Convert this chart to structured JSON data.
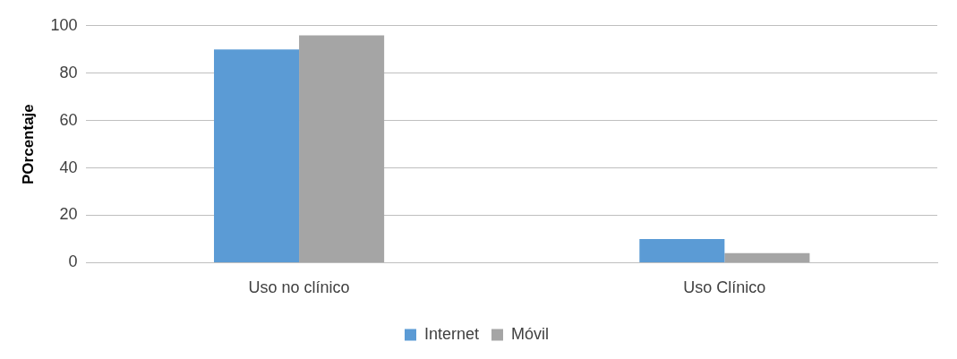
{
  "chart_data": {
    "type": "bar",
    "ylabel": "POrcentaje",
    "categories": [
      "Uso no clínico",
      "Uso Clínico"
    ],
    "series": [
      {
        "name": "Internet",
        "color": "#5b9bd5",
        "values": [
          90,
          10
        ]
      },
      {
        "name": "Móvil",
        "color": "#a5a5a5",
        "values": [
          96,
          4
        ]
      }
    ],
    "ylim": [
      0,
      100
    ],
    "yticks": [
      0,
      20,
      40,
      60,
      80,
      100
    ],
    "grid": "y",
    "legend": "bottom"
  }
}
